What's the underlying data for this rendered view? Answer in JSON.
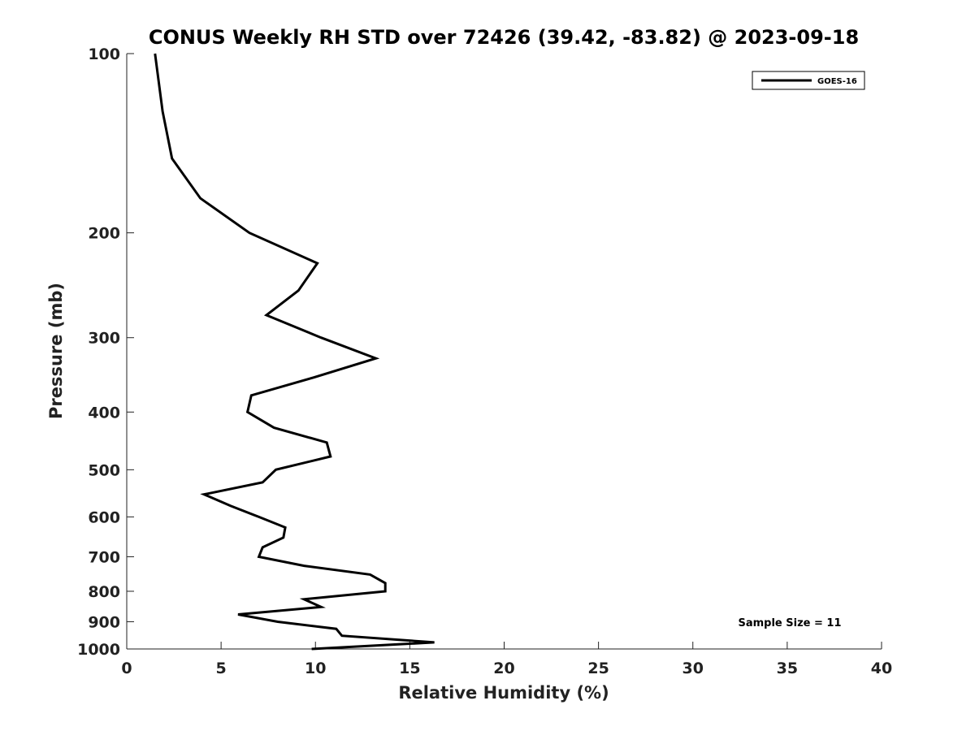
{
  "chart_data": {
    "type": "line",
    "title": "CONUS Weekly RH STD over 72426 (39.42, -83.82) @ 2023-09-18",
    "xlabel": "Relative Humidity (%)",
    "ylabel": "Pressure (mb)",
    "xlim": [
      0,
      40
    ],
    "ylim": [
      100,
      1000
    ],
    "y_scale": "log",
    "y_reversed": true,
    "x_ticks": [
      "0",
      "5",
      "10",
      "15",
      "20",
      "25",
      "30",
      "35",
      "40"
    ],
    "y_ticks": [
      "100",
      "200",
      "300",
      "400",
      "500",
      "600",
      "700",
      "800",
      "900",
      "1000"
    ],
    "legend_position": "top-right",
    "series": [
      {
        "name": "GOES-16",
        "color": "#000000",
        "points": [
          {
            "rh": 1.5,
            "p": 100
          },
          {
            "rh": 1.9,
            "p": 125
          },
          {
            "rh": 2.4,
            "p": 150
          },
          {
            "rh": 3.9,
            "p": 175
          },
          {
            "rh": 6.5,
            "p": 200
          },
          {
            "rh": 10.1,
            "p": 225
          },
          {
            "rh": 9.1,
            "p": 250
          },
          {
            "rh": 7.4,
            "p": 275
          },
          {
            "rh": 10.3,
            "p": 300
          },
          {
            "rh": 13.2,
            "p": 325
          },
          {
            "rh": 9.9,
            "p": 350
          },
          {
            "rh": 6.6,
            "p": 375
          },
          {
            "rh": 6.4,
            "p": 400
          },
          {
            "rh": 7.8,
            "p": 425
          },
          {
            "rh": 10.6,
            "p": 450
          },
          {
            "rh": 10.8,
            "p": 475
          },
          {
            "rh": 7.9,
            "p": 500
          },
          {
            "rh": 7.2,
            "p": 525
          },
          {
            "rh": 4.1,
            "p": 550
          },
          {
            "rh": 5.5,
            "p": 575
          },
          {
            "rh": 7.0,
            "p": 600
          },
          {
            "rh": 8.4,
            "p": 625
          },
          {
            "rh": 8.3,
            "p": 650
          },
          {
            "rh": 7.2,
            "p": 675
          },
          {
            "rh": 7.0,
            "p": 700
          },
          {
            "rh": 9.4,
            "p": 725
          },
          {
            "rh": 12.9,
            "p": 750
          },
          {
            "rh": 13.7,
            "p": 775
          },
          {
            "rh": 13.7,
            "p": 800
          },
          {
            "rh": 9.4,
            "p": 825
          },
          {
            "rh": 10.3,
            "p": 850
          },
          {
            "rh": 5.9,
            "p": 875
          },
          {
            "rh": 8.0,
            "p": 900
          },
          {
            "rh": 11.1,
            "p": 925
          },
          {
            "rh": 11.4,
            "p": 950
          },
          {
            "rh": 16.3,
            "p": 975
          },
          {
            "rh": 9.8,
            "p": 1000
          }
        ]
      }
    ],
    "annotations": [
      {
        "text": "Sample Size = 11",
        "position": "bottom-right"
      }
    ]
  },
  "colors": {
    "line": "#000000",
    "axis": "#222222"
  }
}
